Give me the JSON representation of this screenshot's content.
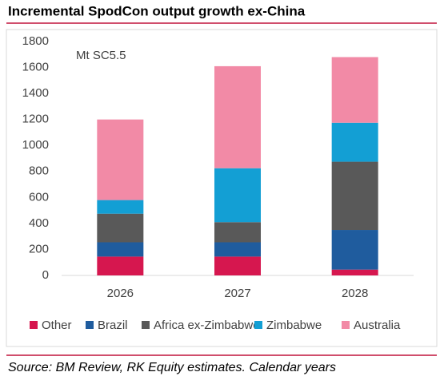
{
  "chart_data": {
    "type": "stacked_bar",
    "title": "Incremental SpodCon output growth ex-China",
    "annotation": "Mt SC5.5",
    "source": "Source: BM Review, RK Equity estimates. Calendar years",
    "categories": [
      "2026",
      "2027",
      "2028"
    ],
    "series": [
      {
        "name": "Other",
        "color": "#d6174f",
        "values": [
          145,
          145,
          45
        ]
      },
      {
        "name": "Brazil",
        "color": "#1f5c9e",
        "values": [
          110,
          110,
          305
        ]
      },
      {
        "name": "Africa ex-Zimbabwe",
        "color": "#595959",
        "values": [
          220,
          155,
          525
        ]
      },
      {
        "name": "Zimbabwe",
        "color": "#139fd4",
        "values": [
          105,
          415,
          300
        ]
      },
      {
        "name": "Australia",
        "color": "#f28aa6",
        "values": [
          620,
          785,
          505
        ]
      }
    ],
    "ylim": [
      0,
      1800
    ],
    "yticks": [
      0,
      200,
      400,
      600,
      800,
      1000,
      1200,
      1400,
      1600,
      1800
    ],
    "grid": false
  }
}
